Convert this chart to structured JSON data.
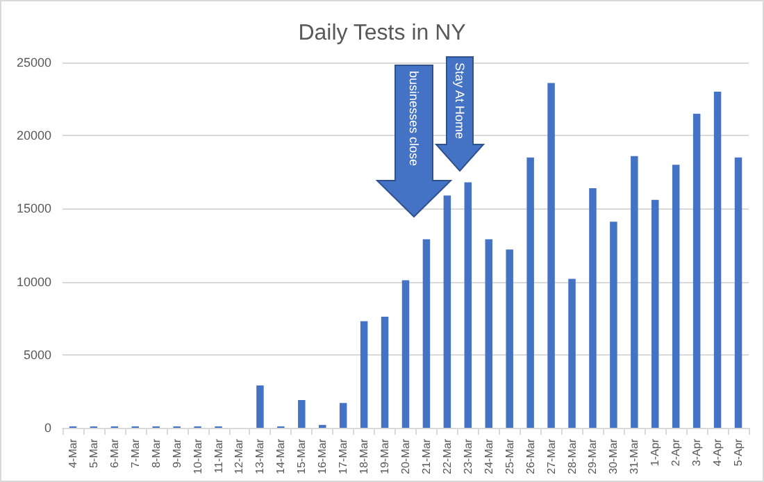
{
  "chart_data": {
    "type": "bar",
    "title": "Daily Tests in NY",
    "categories": [
      "4-Mar",
      "5-Mar",
      "6-Mar",
      "7-Mar",
      "8-Mar",
      "9-Mar",
      "10-Mar",
      "11-Mar",
      "12-Mar",
      "13-Mar",
      "14-Mar",
      "15-Mar",
      "16-Mar",
      "17-Mar",
      "18-Mar",
      "19-Mar",
      "20-Mar",
      "21-Mar",
      "22-Mar",
      "23-Mar",
      "24-Mar",
      "25-Mar",
      "26-Mar",
      "27-Mar",
      "28-Mar",
      "29-Mar",
      "30-Mar",
      "31-Mar",
      "1-Apr",
      "2-Apr",
      "3-Apr",
      "4-Apr",
      "5-Apr"
    ],
    "values": [
      100,
      100,
      100,
      100,
      100,
      100,
      100,
      100,
      0,
      2900,
      100,
      1900,
      200,
      1700,
      7300,
      7600,
      10100,
      12900,
      15900,
      16800,
      12900,
      12200,
      18500,
      23600,
      10200,
      16400,
      14100,
      18600,
      15600,
      18000,
      21500,
      23000,
      18500
    ],
    "color": "#4472c4",
    "ylim": [
      0,
      25000
    ],
    "yticks": [
      0,
      5000,
      10000,
      15000,
      20000,
      25000
    ],
    "grid": "y",
    "annotations": [
      "businesses close",
      "Stay At Home"
    ]
  }
}
